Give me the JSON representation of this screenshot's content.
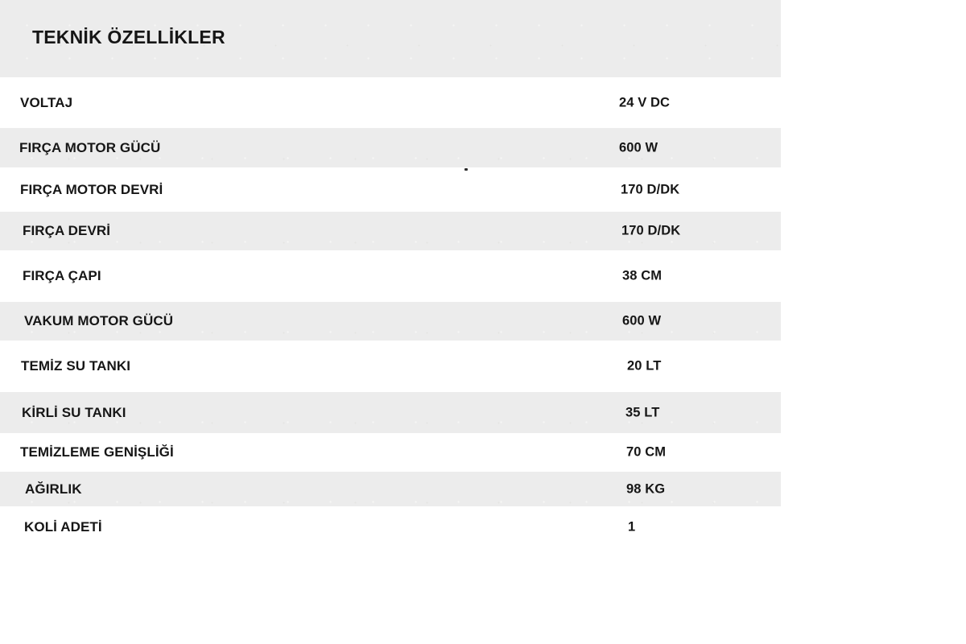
{
  "header": {
    "title": "TEKNİK ÖZELLİKLER"
  },
  "table": {
    "rows": [
      {
        "label": "VOLTAJ",
        "value": "24 V DC"
      },
      {
        "label": "FIRÇA MOTOR GÜCÜ",
        "value": "600 W"
      },
      {
        "label": "FIRÇA MOTOR DEVRİ",
        "value": "170 D/DK"
      },
      {
        "label": "FIRÇA DEVRİ",
        "value": "170 D/DK"
      },
      {
        "label": "FIRÇA ÇAPI",
        "value": "38 CM"
      },
      {
        "label": "VAKUM MOTOR GÜCÜ",
        "value": "600 W"
      },
      {
        "label": "TEMİZ SU TANKI",
        "value": "20 LT"
      },
      {
        "label": "KİRLİ SU TANKI",
        "value": "35 LT"
      },
      {
        "label": "TEMİZLEME GENİŞLİĞİ",
        "value": "70 CM"
      },
      {
        "label": "AĞIRLIK",
        "value": "98 KG"
      },
      {
        "label": "KOLİ ADETİ",
        "value": "1"
      }
    ]
  },
  "colors": {
    "stripe": "#ececec",
    "text": "#161616",
    "background": "#ffffff"
  }
}
